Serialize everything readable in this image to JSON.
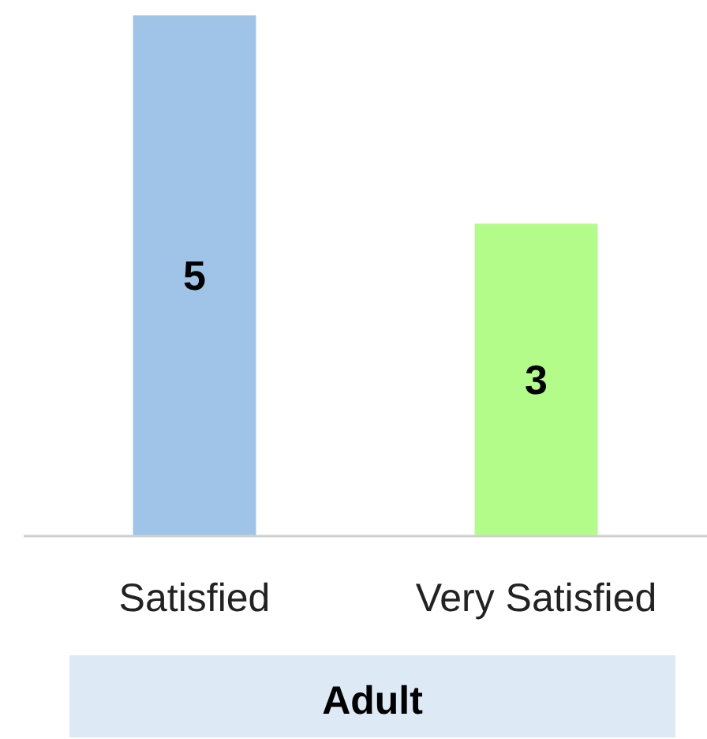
{
  "chart_data": {
    "type": "bar",
    "xlabel": "Adult",
    "categories": [
      "Satisfied",
      "Very Satisfied"
    ],
    "values": [
      5,
      3
    ],
    "colors": [
      "#9fc4e7",
      "#b3fc8a"
    ],
    "data_labels": true
  }
}
